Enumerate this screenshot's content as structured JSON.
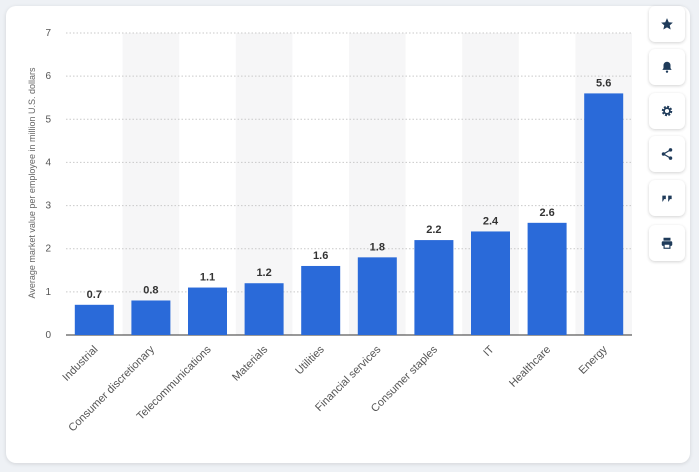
{
  "chart_data": {
    "type": "bar",
    "categories": [
      "Industrial",
      "Consumer discretionary",
      "Telecommunications",
      "Materials",
      "Utilities",
      "Financial services",
      "Consumer staples",
      "IT",
      "Healthcare",
      "Energy"
    ],
    "values": [
      0.7,
      0.8,
      1.1,
      1.2,
      1.6,
      1.8,
      2.2,
      2.4,
      2.6,
      5.6
    ],
    "value_labels": [
      "0.7",
      "0.8",
      "1.1",
      "1.2",
      "1.6",
      "1.8",
      "2.2",
      "2.4",
      "2.6",
      "5.6"
    ],
    "ylabel": "Average market value per employee in million U.S. dollars",
    "xlabel": "",
    "yticks": [
      0,
      1,
      2,
      3,
      4,
      5,
      6,
      7
    ],
    "ylim": [
      0,
      7
    ],
    "grid": true,
    "bar_color": "#2a6ad9",
    "band_color": "#f6f6f7"
  },
  "toolbar": {
    "buttons": [
      {
        "name": "favorite-button",
        "icon": "star-icon"
      },
      {
        "name": "notification-button",
        "icon": "bell-icon"
      },
      {
        "name": "settings-button",
        "icon": "gear-icon"
      },
      {
        "name": "share-button",
        "icon": "share-icon"
      },
      {
        "name": "cite-button",
        "icon": "quote-icon"
      },
      {
        "name": "print-button",
        "icon": "print-icon"
      }
    ]
  }
}
